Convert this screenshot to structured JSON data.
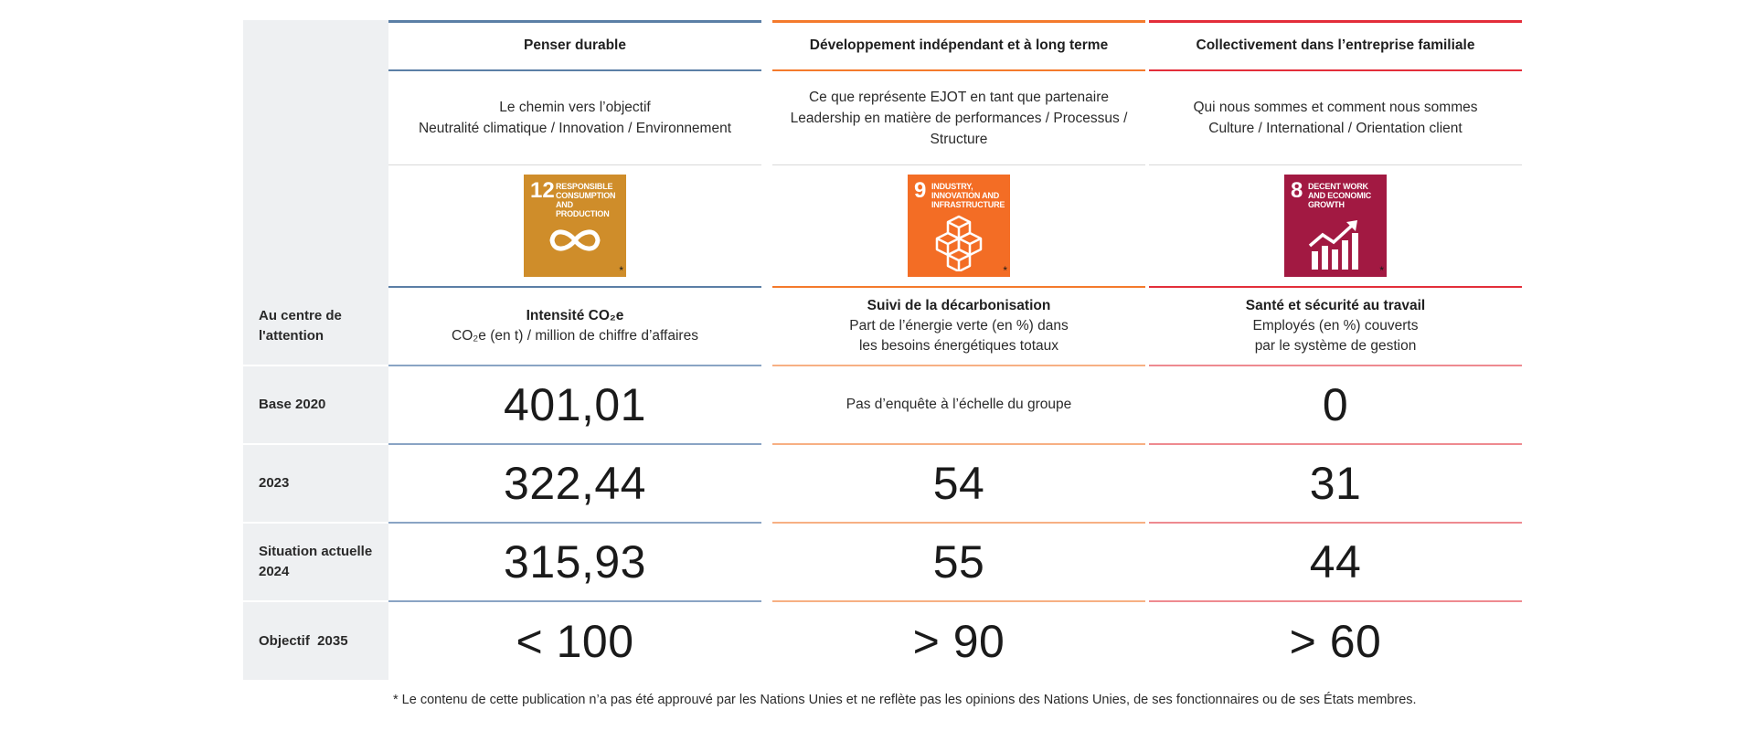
{
  "row_labels": [
    "Au centre de l'attention",
    "Base 2020",
    "2023",
    "Situation actuelle 2024",
    "Objectif  2035"
  ],
  "columns": [
    {
      "accent": "#5b7fa6",
      "accent_light": "#8aa4c4",
      "header": "Penser durable",
      "subtitle": [
        "Le chemin vers l’objectif",
        "Neutralité climatique / Innovation / Environnement"
      ],
      "sdg": {
        "number": "12",
        "text": "Responsible consumption and production",
        "color": "#cf8d2a",
        "icon": "infinity-icon"
      },
      "focus_title": "Intensité CO₂e",
      "focus_sub": [
        "CO₂e (en t) / million de chiffre d’affaires"
      ],
      "values": [
        "401,01",
        "322,44",
        "315,93",
        "< 100"
      ]
    },
    {
      "accent": "#f47a2c",
      "accent_light": "#f7b083",
      "header": "Développement indépendant et à long terme",
      "subtitle": [
        "Ce que représente EJOT en tant que partenaire",
        "Leadership en matière de performances / Processus /",
        "Structure"
      ],
      "sdg": {
        "number": "9",
        "text": "Industry, innovation and infrastructure",
        "color": "#f36d25",
        "icon": "cubes-icon"
      },
      "focus_title": "Suivi de la décarbonisation",
      "focus_sub": [
        "Part de l’énergie verte (en %) dans",
        "les besoins énergétiques totaux"
      ],
      "values": [
        "Pas d’enquête à l’échelle du groupe",
        "54",
        "55",
        "> 90"
      ]
    },
    {
      "accent": "#e32e3a",
      "accent_light": "#ee8a90",
      "header": "Collectivement dans l’entreprise familiale",
      "subtitle": [
        "Qui nous sommes et comment nous sommes",
        "Culture / International / Orientation client"
      ],
      "sdg": {
        "number": "8",
        "text": "Decent work and economic growth",
        "color": "#a21942",
        "icon": "growth-chart-icon"
      },
      "focus_title": "Santé et sécurité au travail",
      "focus_sub": [
        "Employés (en %) couverts",
        "par le système de gestion"
      ],
      "values": [
        "0",
        "31",
        "44",
        "> 60"
      ]
    }
  ],
  "sdg_star": "*",
  "footnote": "* Le contenu de cette publication n’a pas été approuvé par les Nations Unies et ne reflète pas les opinions des Nations Unies, de ses fonctionnaires ou de ses États membres."
}
